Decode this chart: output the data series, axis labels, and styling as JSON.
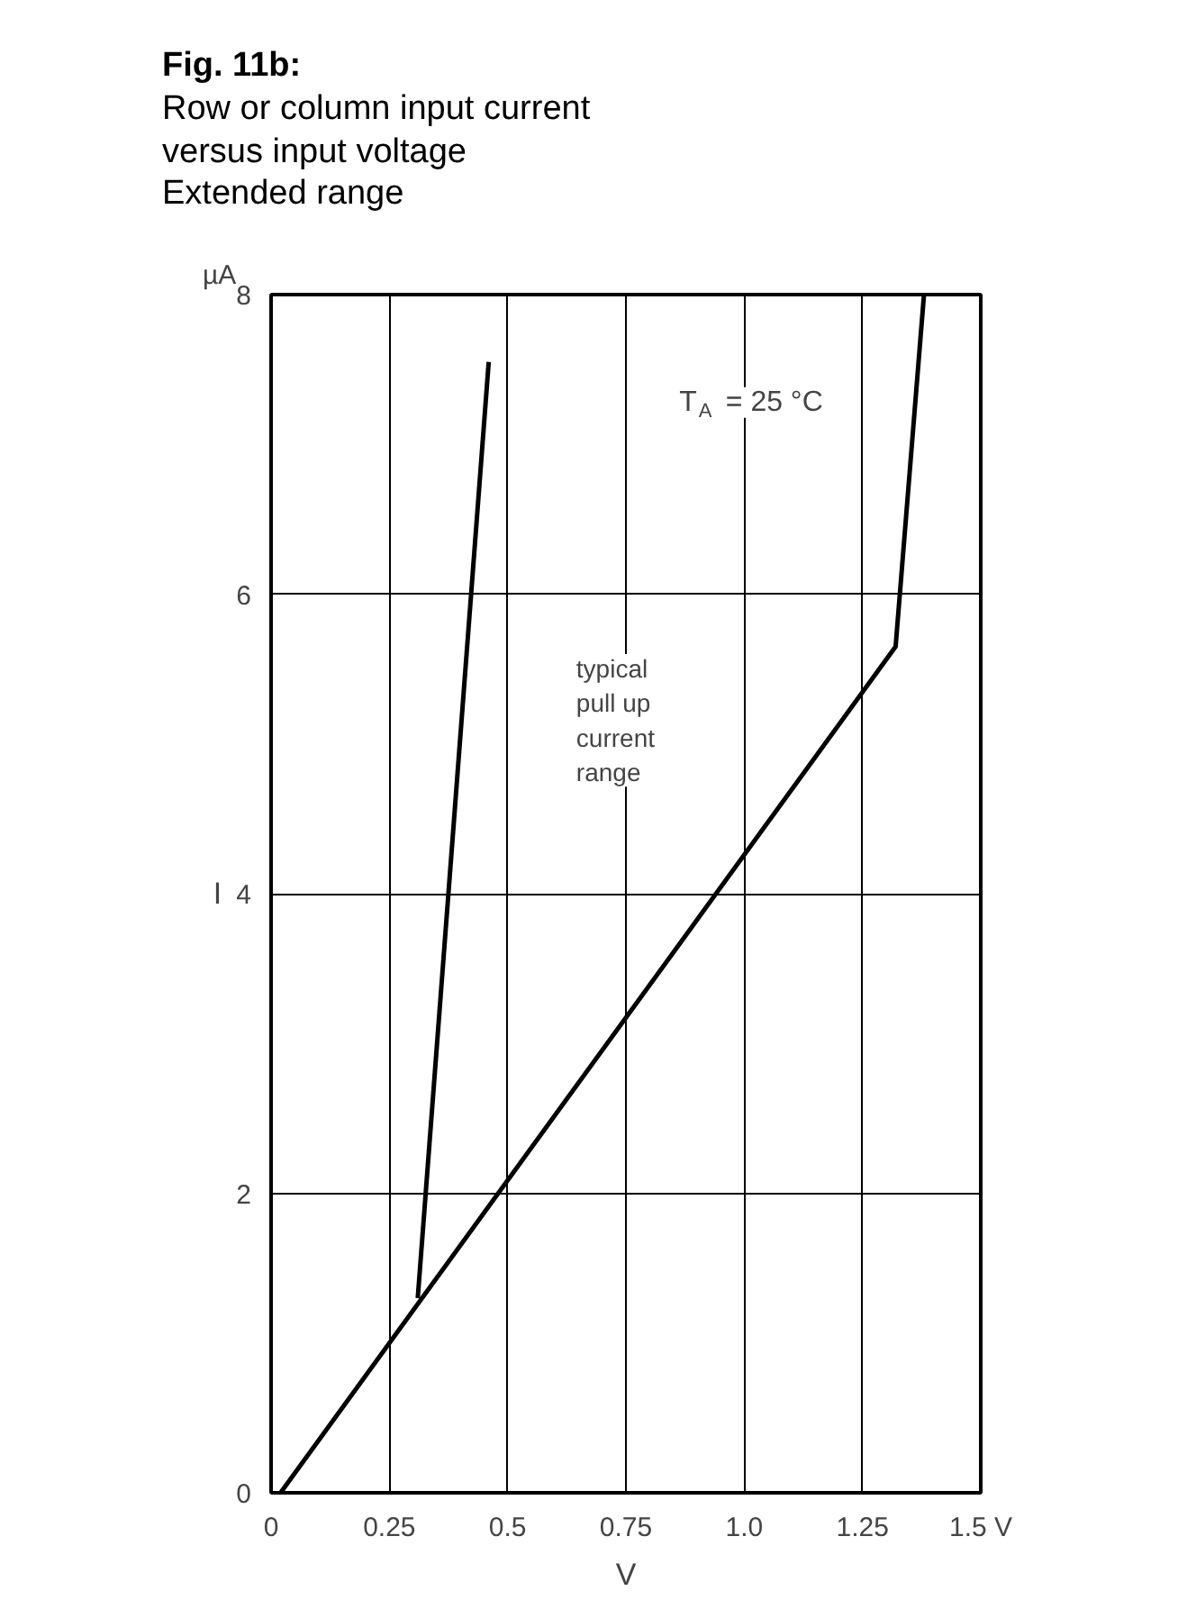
{
  "chart_data": {
    "type": "line",
    "title": "Fig. 11b:",
    "subtitle": "Row or column input current\nversus input voltage\nExtended range",
    "xlabel": "V",
    "ylabel": "I",
    "series": [
      {
        "color": "#000000",
        "x": [
          0.02,
          1.32,
          1.38
        ],
        "values": [
          0,
          5.65,
          8
        ]
      },
      {
        "color": "#000000",
        "x": [
          0.31,
          0.46
        ],
        "values": [
          1.3,
          7.55
        ]
      }
    ],
    "xlim": [
      0,
      1.5
    ],
    "ylim": [
      0,
      8
    ],
    "xticks": [
      0,
      {
        "value": 0.25,
        "label": "0.25"
      },
      0.5,
      0.75,
      {
        "value": 1.0,
        "label": "1.0"
      },
      1.25,
      {
        "value": 1.5,
        "label": "1.5 V"
      }
    ],
    "yticks": [
      0,
      2,
      4,
      6,
      8
    ],
    "annotations": [
      "µA",
      "T$_{A}$ = 25 °C",
      "typical\npull up\ncurrent\nrange"
    ],
    "grid": true,
    "line_style": "solid",
    "marker": "none"
  }
}
